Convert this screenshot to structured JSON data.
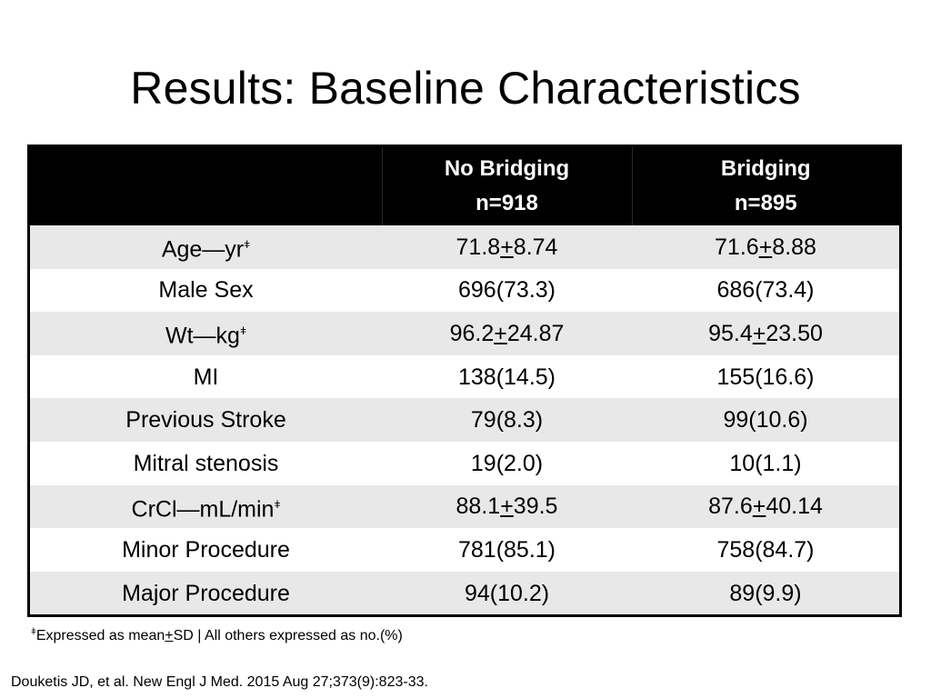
{
  "slide": {
    "title": "Results: Baseline Characteristics"
  },
  "table": {
    "headers": [
      {
        "line1": "",
        "line2": ""
      },
      {
        "line1": "No Bridging",
        "line2": "n=918"
      },
      {
        "line1": "Bridging",
        "line2": "n=895"
      }
    ],
    "rows": [
      {
        "label": "Age—yr",
        "mark": "ǂ",
        "nb": {
          "a": "71.8",
          "pm": "+",
          "b": "8.74"
        },
        "b": {
          "a": "71.6",
          "pm": "+",
          "b": "8.88"
        }
      },
      {
        "label": "Male Sex",
        "mark": "",
        "nb": {
          "a": "696(73.3)",
          "pm": "",
          "b": ""
        },
        "b": {
          "a": "686(73.4)",
          "pm": "",
          "b": ""
        }
      },
      {
        "label": "Wt—kg",
        "mark": "ǂ",
        "nb": {
          "a": "96.2",
          "pm": "+",
          "b": "24.87"
        },
        "b": {
          "a": "95.4",
          "pm": "+",
          "b": "23.50"
        }
      },
      {
        "label": "MI",
        "mark": "",
        "nb": {
          "a": "138(14.5)",
          "pm": "",
          "b": ""
        },
        "b": {
          "a": "155(16.6)",
          "pm": "",
          "b": ""
        }
      },
      {
        "label": "Previous Stroke",
        "mark": "",
        "nb": {
          "a": "79(8.3)",
          "pm": "",
          "b": ""
        },
        "b": {
          "a": "99(10.6)",
          "pm": "",
          "b": ""
        }
      },
      {
        "label": "Mitral stenosis",
        "mark": "",
        "nb": {
          "a": "19(2.0)",
          "pm": "",
          "b": ""
        },
        "b": {
          "a": "10(1.1)",
          "pm": "",
          "b": ""
        }
      },
      {
        "label": "CrCl—mL/min",
        "mark": "ǂ",
        "nb": {
          "a": "88.1",
          "pm": "+",
          "b": "39.5"
        },
        "b": {
          "a": "87.6",
          "pm": "+",
          "b": "40.14"
        }
      },
      {
        "label": "Minor Procedure",
        "mark": "",
        "nb": {
          "a": "781(85.1)",
          "pm": "",
          "b": ""
        },
        "b": {
          "a": "758(84.7)",
          "pm": "",
          "b": ""
        }
      },
      {
        "label": "Major Procedure",
        "mark": "",
        "nb": {
          "a": "94(10.2)",
          "pm": "",
          "b": ""
        },
        "b": {
          "a": "89(9.9)",
          "pm": "",
          "b": ""
        }
      }
    ]
  },
  "footnote": {
    "mark": "ǂ",
    "text_a": "Expressed as mean",
    "pm": "+",
    "text_b": "SD | All others expressed as no.(%)"
  },
  "citation": "Douketis JD, et al. New Engl J Med. 2015 Aug 27;373(9):823-33.",
  "colors": {
    "header_bg": "#000000",
    "header_text": "#ffffff",
    "row_shade": "#e8e8e8",
    "row_plain": "#ffffff"
  }
}
